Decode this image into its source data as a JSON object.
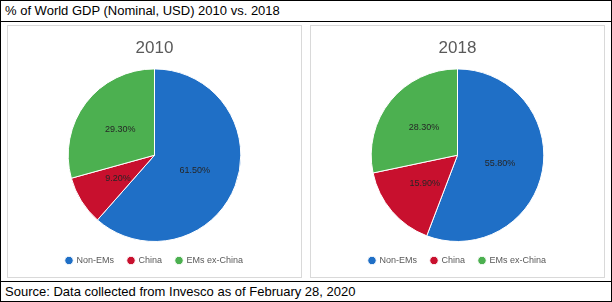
{
  "title": "% of World GDP (Nominal, USD) 2010 vs. 2018",
  "source": "Source: Data collected from Invesco as of February 28, 2020",
  "chart_data": [
    {
      "type": "pie",
      "title": "2010",
      "categories": [
        "Non-EMs",
        "China",
        "EMs ex-China"
      ],
      "values": [
        61.5,
        9.2,
        29.3
      ],
      "value_labels": [
        "61.50%",
        "9.20%",
        "29.30%"
      ],
      "colors": [
        "#1f6fc6",
        "#c8102e",
        "#4cb050"
      ],
      "data_labels": true,
      "legend": "bottom"
    },
    {
      "type": "pie",
      "title": "2018",
      "categories": [
        "Non-EMs",
        "China",
        "EMs ex-China"
      ],
      "values": [
        55.8,
        15.9,
        28.3
      ],
      "value_labels": [
        "55.80%",
        "15.90%",
        "28.30%"
      ],
      "colors": [
        "#1f6fc6",
        "#c8102e",
        "#4cb050"
      ],
      "data_labels": true,
      "legend": "bottom"
    }
  ]
}
